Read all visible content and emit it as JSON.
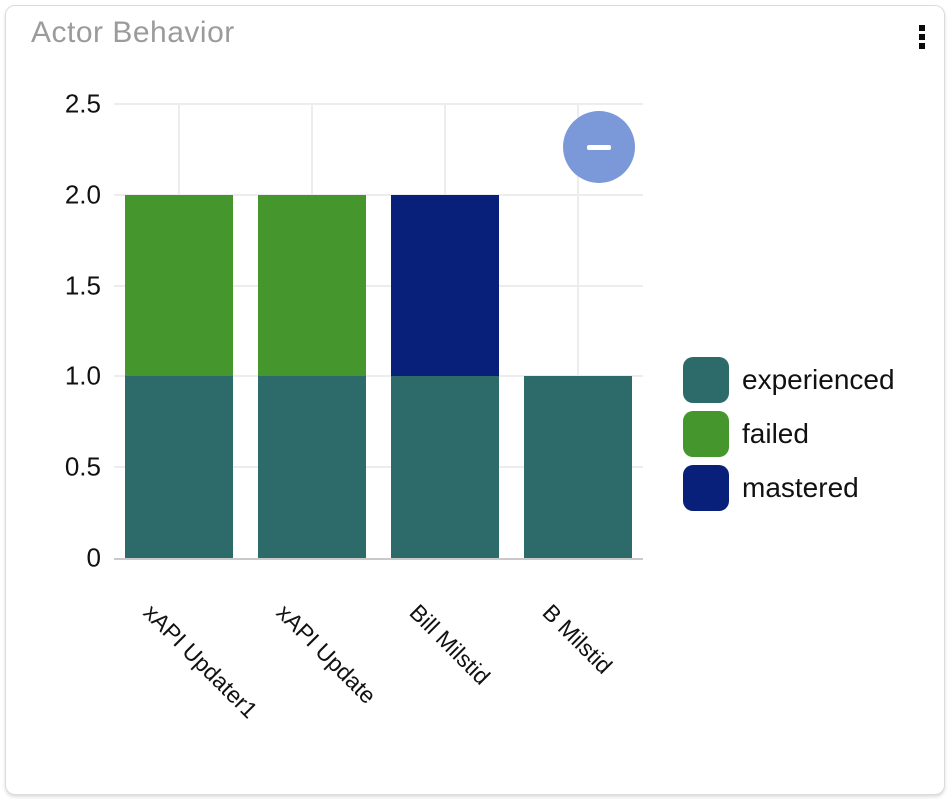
{
  "card": {
    "title": "Actor Behavior"
  },
  "menu": {
    "icon": "kebab-vertical",
    "dot_color": "#0a0a0a"
  },
  "controls": {
    "collapse_button": {
      "icon": "minus",
      "color": "#7b98d8",
      "glyph_color": "#ffffff"
    }
  },
  "chart_data": {
    "type": "bar",
    "stacked": true,
    "title": "Actor Behavior",
    "categories": [
      "xAPI Updater1",
      "xAPI Update",
      "Bill Milstid",
      "B Milstid"
    ],
    "series": [
      {
        "name": "experienced",
        "color": "#2d6b6b",
        "values": [
          1,
          1,
          1,
          1
        ]
      },
      {
        "name": "failed",
        "color": "#45962c",
        "values": [
          1,
          1,
          0,
          0
        ]
      },
      {
        "name": "mastered",
        "color": "#09207a",
        "values": [
          0,
          0,
          1,
          0
        ]
      }
    ],
    "xlabel": "",
    "ylabel": "",
    "ylim": [
      0,
      2.5
    ],
    "yticks": [
      "0",
      "0.5",
      "1.0",
      "1.5",
      "2.0",
      "2.5"
    ],
    "ytick_values": [
      0,
      0.5,
      1.0,
      1.5,
      2.0,
      2.5
    ],
    "grid": true,
    "legend_position": "right",
    "x_tick_angle": 45
  }
}
